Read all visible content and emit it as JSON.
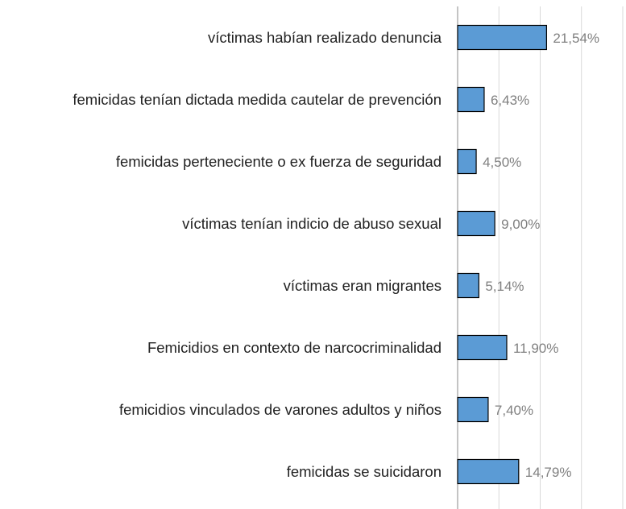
{
  "chart_data": {
    "type": "barh",
    "categories": [
      "víctimas habían realizado denuncia",
      "femicidas tenían dictada medida cautelar de prevención",
      "femicidas perteneciente o ex fuerza de seguridad",
      "víctimas tenían indicio de abuso sexual",
      "víctimas eran migrantes",
      "Femicidios en contexto de narcocriminalidad",
      "femicidios vinculados de varones adultos y niños",
      "femicidas se suicidaron"
    ],
    "values": [
      21.54,
      6.43,
      4.5,
      9.0,
      5.14,
      11.9,
      7.4,
      14.79
    ],
    "value_labels": [
      "21,54%",
      "6,43%",
      "4,50%",
      "9,00%",
      "5,14%",
      "11,90%",
      "7,40%",
      "14,79%"
    ],
    "color": "#5b9bd5",
    "xlim": [
      0,
      40
    ],
    "xticks": [
      0,
      10,
      20,
      30,
      40
    ],
    "grid": true
  }
}
